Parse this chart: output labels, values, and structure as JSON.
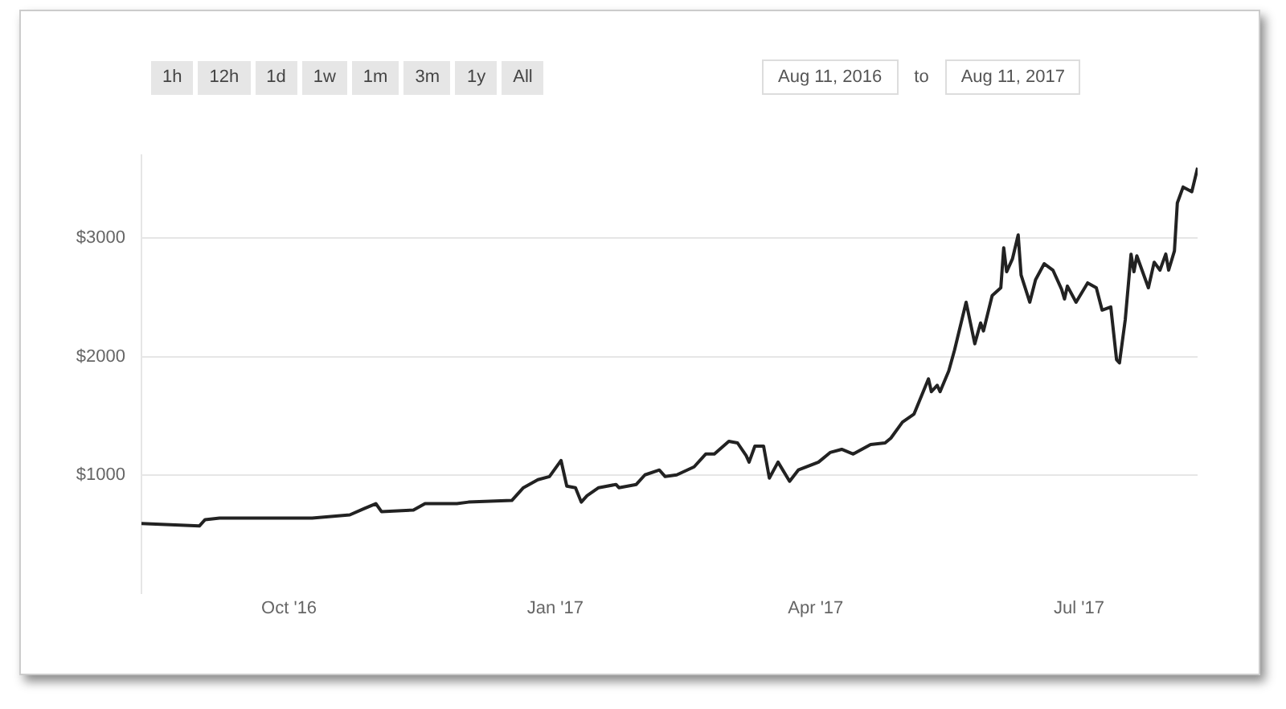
{
  "chart_data": {
    "type": "line",
    "annotations": [
      "1h",
      "12h",
      "1d",
      "1w",
      "1m",
      "3m",
      "1y",
      "All",
      "Aug 11, 2016",
      "to",
      "Aug 11, 2017"
    ],
    "x": [
      "2016-08-11",
      "2016-08-31",
      "2016-09-02",
      "2016-09-07",
      "2016-10-09",
      "2016-10-22",
      "2016-10-27",
      "2016-10-31",
      "2016-11-02",
      "2016-11-13",
      "2016-11-17",
      "2016-11-28",
      "2016-12-02",
      "2016-12-17",
      "2016-12-21",
      "2016-12-26",
      "2016-12-30",
      "2017-01-03",
      "2017-01-05",
      "2017-01-08",
      "2017-01-10",
      "2017-01-12",
      "2017-01-16",
      "2017-01-22",
      "2017-01-23",
      "2017-01-29",
      "2017-02-01",
      "2017-02-06",
      "2017-02-08",
      "2017-02-12",
      "2017-02-18",
      "2017-02-22",
      "2017-02-25",
      "2017-03-02",
      "2017-03-05",
      "2017-03-08",
      "2017-03-09",
      "2017-03-11",
      "2017-03-14",
      "2017-03-16",
      "2017-03-19",
      "2017-03-23",
      "2017-03-26",
      "2017-04-02",
      "2017-04-06",
      "2017-04-10",
      "2017-04-14",
      "2017-04-20",
      "2017-04-25",
      "2017-04-27",
      "2017-05-01",
      "2017-05-05",
      "2017-05-10",
      "2017-05-11",
      "2017-05-13",
      "2017-05-14",
      "2017-05-17",
      "2017-05-19",
      "2017-05-23",
      "2017-05-26",
      "2017-05-28",
      "2017-05-29",
      "2017-06-01",
      "2017-06-04",
      "2017-06-05",
      "2017-06-06",
      "2017-06-08",
      "2017-06-10",
      "2017-06-11",
      "2017-06-14",
      "2017-06-16",
      "2017-06-19",
      "2017-06-22",
      "2017-06-25",
      "2017-06-26",
      "2017-06-27",
      "2017-06-30",
      "2017-07-04",
      "2017-07-07",
      "2017-07-09",
      "2017-07-12",
      "2017-07-14",
      "2017-07-15",
      "2017-07-17",
      "2017-07-19",
      "2017-07-20",
      "2017-07-21",
      "2017-07-25",
      "2017-07-27",
      "2017-07-29",
      "2017-07-31",
      "2017-08-01",
      "2017-08-03",
      "2017-08-04",
      "2017-08-06",
      "2017-08-09",
      "2017-08-11"
    ],
    "series": [
      {
        "color": "#222222",
        "values": [
          590,
          568,
          622,
          635,
          635,
          662,
          716,
          757,
          689,
          703,
          757,
          757,
          770,
          784,
          892,
          959,
          986,
          1122,
          905,
          892,
          770,
          824,
          892,
          919,
          892,
          919,
          1000,
          1041,
          986,
          1000,
          1068,
          1176,
          1176,
          1284,
          1270,
          1162,
          1108,
          1243,
          1243,
          973,
          1108,
          946,
          1041,
          1108,
          1189,
          1216,
          1176,
          1257,
          1270,
          1311,
          1446,
          1514,
          1811,
          1703,
          1757,
          1703,
          1878,
          2054,
          2459,
          2108,
          2284,
          2216,
          2514,
          2581,
          2919,
          2716,
          2824,
          3027,
          2689,
          2459,
          2649,
          2784,
          2730,
          2568,
          2486,
          2595,
          2459,
          2622,
          2581,
          2392,
          2419,
          1973,
          1946,
          2311,
          2865,
          2716,
          2851,
          2581,
          2797,
          2730,
          2865,
          2730,
          2892,
          3297,
          3432,
          3392,
          3595
        ]
      }
    ],
    "xlim": [
      "2016-08-11",
      "2017-08-11"
    ],
    "xticks": [
      {
        "value": "2016-10-01",
        "label": "Oct '16"
      },
      {
        "value": "2017-01-01",
        "label": "Jan '17"
      },
      {
        "value": "2017-04-01",
        "label": "Apr '17"
      },
      {
        "value": "2017-07-01",
        "label": "Jul '17"
      }
    ],
    "ylim": [
      0,
      3700
    ],
    "yticks": [
      {
        "value": 1000,
        "label": "$1000"
      },
      {
        "value": 2000,
        "label": "$2000"
      },
      {
        "value": 3000,
        "label": "$3000"
      }
    ],
    "grid": "y",
    "legend": false,
    "marker": "none",
    "line_style": "solid"
  }
}
